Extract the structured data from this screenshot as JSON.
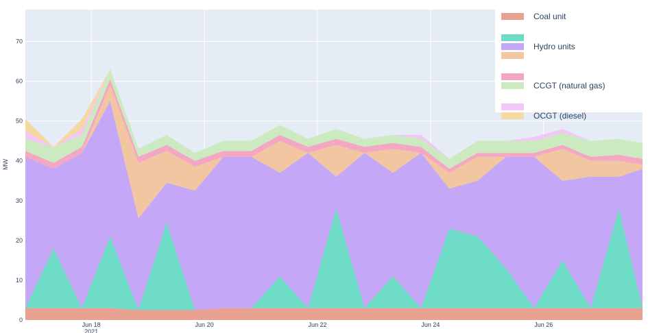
{
  "chart_data": {
    "type": "area",
    "xlabel": "",
    "ylabel": "MW",
    "ylim": [
      0,
      78
    ],
    "y_ticks": [
      "0",
      "10",
      "20",
      "30",
      "40",
      "50",
      "60",
      "70"
    ],
    "x_ticks": [
      {
        "date": "2021-06-18",
        "label": "Jun 18",
        "sublabel": "2021"
      },
      {
        "date": "2021-06-20",
        "label": "Jun 20",
        "sublabel": ""
      },
      {
        "date": "2021-06-22",
        "label": "Jun 22",
        "sublabel": ""
      },
      {
        "date": "2021-06-24",
        "label": "Jun 24",
        "sublabel": ""
      },
      {
        "date": "2021-06-26",
        "label": "Jun 26",
        "sublabel": ""
      }
    ],
    "xlim": [
      "2021-06-16 20:00",
      "2021-06-27 18:00"
    ],
    "grid": true,
    "legend_position": "top-right",
    "legend_groups": [
      {
        "label": "Coal unit",
        "colors": [
          "#e8a090"
        ]
      },
      {
        "label": "Hydro units",
        "colors": [
          "#6ddbc5",
          "#c4a7f7",
          "#f2c6a0"
        ]
      },
      {
        "label": "CCGT (natural gas)",
        "colors": [
          "#f4a7c2",
          "#cceac0"
        ]
      },
      {
        "label": "OCGT (diesel)",
        "colors": [
          "#f2c6f5",
          "#f5d9a0"
        ]
      }
    ],
    "x": [
      "2021-06-16 20:00",
      "2021-06-17 08:00",
      "2021-06-17 20:00",
      "2021-06-18 08:00",
      "2021-06-18 20:00",
      "2021-06-19 08:00",
      "2021-06-19 20:00",
      "2021-06-20 08:00",
      "2021-06-20 20:00",
      "2021-06-21 08:00",
      "2021-06-21 20:00",
      "2021-06-22 08:00",
      "2021-06-22 20:00",
      "2021-06-23 08:00",
      "2021-06-23 20:00",
      "2021-06-24 08:00",
      "2021-06-24 20:00",
      "2021-06-25 08:00",
      "2021-06-25 20:00",
      "2021-06-26 08:00",
      "2021-06-26 20:00",
      "2021-06-27 08:00",
      "2021-06-27 18:00"
    ],
    "series": [
      {
        "color": "#e8a090",
        "values": [
          3,
          3,
          3,
          3,
          2.5,
          2.5,
          2.5,
          3,
          3,
          3,
          3,
          3,
          3,
          3,
          3,
          3,
          3,
          3,
          3,
          3,
          3,
          3,
          3
        ]
      },
      {
        "color": "#6ddbc5",
        "values": [
          0,
          15,
          0,
          18,
          0,
          22,
          0,
          0,
          0,
          8,
          0,
          25,
          0,
          8,
          0,
          20,
          18,
          10,
          0,
          12,
          0,
          25,
          0
        ]
      },
      {
        "color": "#c4a7f7",
        "values": [
          38,
          20,
          39,
          34,
          23,
          10,
          30,
          38,
          38,
          26,
          39,
          8,
          39,
          26,
          39,
          10,
          14,
          28,
          38,
          20,
          33,
          8,
          35
        ]
      },
      {
        "color": "#f2c6a0",
        "values": [
          0,
          0,
          0,
          4,
          14,
          8,
          6,
          0,
          0,
          8,
          0,
          8,
          0,
          6,
          0,
          4,
          6,
          0,
          0,
          8,
          4,
          4,
          1
        ]
      },
      {
        "color": "#f4a7c2",
        "values": [
          1.5,
          1.5,
          1.5,
          1.5,
          1.5,
          1.5,
          1.5,
          1.5,
          1.5,
          1.5,
          1.5,
          1.5,
          1.5,
          1.5,
          1.5,
          1,
          1,
          1,
          1,
          1,
          1,
          1.5,
          1.5
        ]
      },
      {
        "color": "#cceac0",
        "values": [
          3,
          4,
          3,
          2.5,
          2,
          2.5,
          2,
          2.5,
          2.5,
          2.5,
          2,
          2.5,
          2,
          2,
          2,
          2.5,
          3,
          3,
          3,
          3,
          4,
          4,
          4
        ]
      },
      {
        "color": "#f2c6f5",
        "values": [
          2,
          0,
          1.5,
          0,
          0,
          0,
          0,
          0,
          0,
          0,
          0,
          0,
          0,
          0,
          1,
          0,
          0,
          0,
          1,
          1,
          0,
          0,
          0
        ]
      },
      {
        "color": "#f5d9a0",
        "values": [
          3,
          0,
          2.5,
          0,
          0,
          0,
          0,
          0,
          0,
          0,
          0,
          0,
          0,
          0,
          0,
          0,
          0,
          0,
          0,
          0,
          0,
          0,
          0
        ]
      }
    ]
  }
}
